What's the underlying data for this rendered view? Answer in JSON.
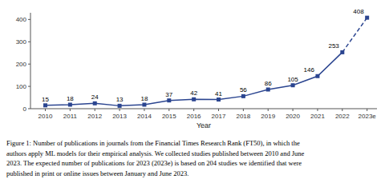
{
  "chart_data": {
    "type": "line",
    "categories": [
      "2010",
      "2011",
      "2012",
      "2013",
      "2014",
      "2015",
      "2016",
      "2017",
      "2018",
      "2019",
      "2020",
      "2021",
      "2022",
      "2023e"
    ],
    "series": [
      {
        "color": "#2B4590",
        "marker": "square",
        "line_style": "solid",
        "values": [
          15,
          18,
          24,
          13,
          18,
          37,
          42,
          41,
          56,
          86,
          105,
          146,
          253,
          null
        ]
      },
      {
        "color": "#2B4590",
        "marker": "square",
        "line_style": "dashed",
        "values": [
          null,
          null,
          null,
          null,
          null,
          null,
          null,
          null,
          null,
          null,
          null,
          null,
          253,
          408
        ]
      }
    ],
    "x_label": "Year",
    "ylim": [
      0,
      430
    ],
    "yticks": [
      0,
      100,
      200,
      300,
      400
    ],
    "grid": false,
    "data_labels": true,
    "caption": [
      "Figure 1: Number of publications in journals from the Financial Times Research Rank (FT50), in which the",
      "authors apply ML models for their empirical analysis. We collected studies published between 2010 and June",
      "2023. The expected number of publications for 2023 (2023e) is based on 204 studies we identified that were",
      "published in print or online issues between January and June 2023."
    ]
  }
}
